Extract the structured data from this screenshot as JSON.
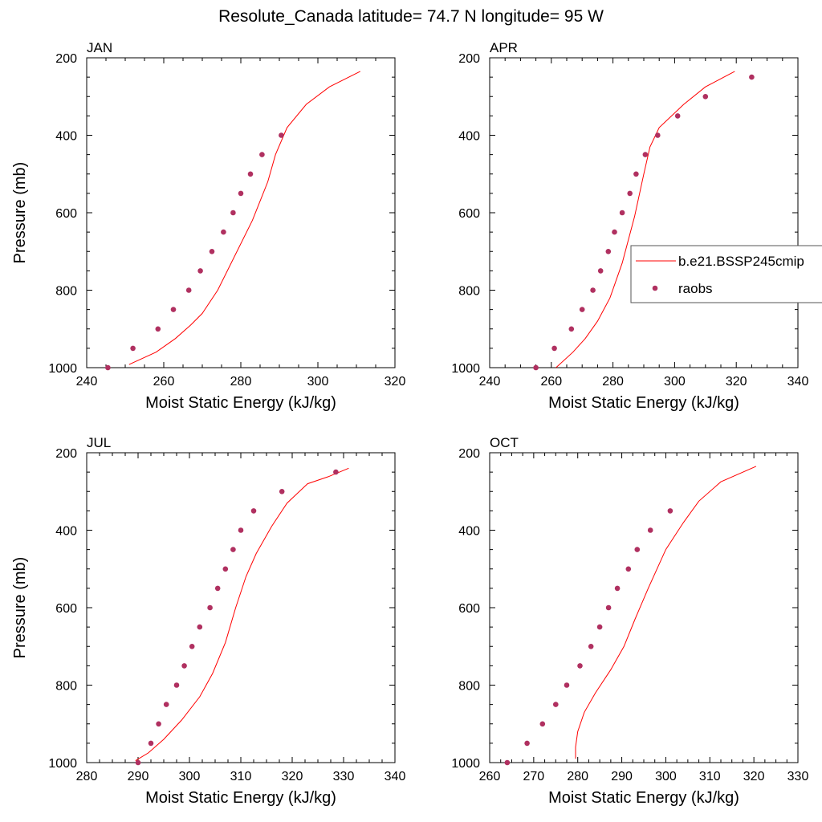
{
  "title": "Resolute_Canada  latitude= 74.7 N longitude= 95 W",
  "colors": {
    "model": "#ff0000",
    "obs": "#b03060"
  },
  "legend": {
    "model_label": "b.e21.BSSP245cmip",
    "obs_label": "raobs",
    "placement": "right side of APR panel (clipped at right edge)"
  },
  "chart_data": [
    {
      "type": "line+scatter",
      "panel": "JAN",
      "title": "JAN",
      "xlabel": "Moist Static Energy (kJ/kg)",
      "ylabel": "Pressure (mb)",
      "xlim": [
        240,
        320
      ],
      "ylim": [
        1000,
        200
      ],
      "xticks": [
        240,
        260,
        280,
        300,
        320
      ],
      "yticks": [
        200,
        400,
        600,
        800,
        1000
      ],
      "series": [
        {
          "name": "b.e21.BSSP245cmip",
          "kind": "line",
          "x": [
            251,
            258,
            263,
            267,
            270,
            274,
            278,
            283,
            287,
            289,
            292,
            297,
            303,
            311
          ],
          "y": [
            992,
            960,
            925,
            890,
            860,
            800,
            720,
            620,
            520,
            450,
            380,
            320,
            275,
            235
          ]
        },
        {
          "name": "raobs",
          "kind": "scatter",
          "x": [
            245.5,
            252,
            258.5,
            262.5,
            266.5,
            269.5,
            272.5,
            275.5,
            278,
            280,
            282.5,
            285.5,
            290.5
          ],
          "y": [
            1000,
            950,
            900,
            850,
            800,
            750,
            700,
            650,
            600,
            550,
            500,
            450,
            400
          ]
        }
      ]
    },
    {
      "type": "line+scatter",
      "panel": "APR",
      "title": "APR",
      "xlabel": "Moist Static Energy (kJ/kg)",
      "ylabel": "",
      "xlim": [
        240,
        340
      ],
      "ylim": [
        1000,
        200
      ],
      "xticks": [
        240,
        260,
        280,
        300,
        320,
        340
      ],
      "yticks": [
        200,
        400,
        600,
        800,
        1000
      ],
      "series": [
        {
          "name": "b.e21.BSSP245cmip",
          "kind": "line",
          "x": [
            261.5,
            267,
            271,
            275,
            279,
            283,
            287,
            290,
            292,
            295,
            299,
            303,
            310,
            319.5
          ],
          "y": [
            1000,
            960,
            925,
            880,
            820,
            730,
            610,
            500,
            430,
            380,
            350,
            320,
            275,
            235
          ]
        },
        {
          "name": "raobs",
          "kind": "scatter",
          "x": [
            255,
            261,
            266.5,
            270,
            273.5,
            276,
            278.5,
            280.5,
            283,
            285.5,
            287.5,
            290.5,
            294.5,
            301,
            310,
            325
          ],
          "y": [
            1000,
            950,
            900,
            850,
            800,
            750,
            700,
            650,
            600,
            550,
            500,
            450,
            400,
            350,
            300,
            250
          ]
        }
      ]
    },
    {
      "type": "line+scatter",
      "panel": "JUL",
      "title": "JUL",
      "xlabel": "Moist Static Energy (kJ/kg)",
      "ylabel": "Pressure (mb)",
      "xlim": [
        280,
        340
      ],
      "ylim": [
        1000,
        200
      ],
      "xticks": [
        280,
        290,
        300,
        310,
        320,
        330,
        340
      ],
      "yticks": [
        200,
        400,
        600,
        800,
        1000
      ],
      "series": [
        {
          "name": "b.e21.BSSP245cmip",
          "kind": "line",
          "x": [
            289.5,
            292,
            295,
            298.5,
            302,
            304.5,
            307,
            309,
            311,
            313,
            316,
            319,
            323,
            327,
            331
          ],
          "y": [
            995,
            975,
            940,
            890,
            830,
            770,
            690,
            600,
            520,
            460,
            390,
            330,
            280,
            262,
            240
          ]
        },
        {
          "name": "raobs",
          "kind": "scatter",
          "x": [
            290,
            292.5,
            294,
            295.5,
            297.5,
            299,
            300.5,
            302,
            304,
            305.5,
            307,
            308.5,
            310,
            312.5,
            318,
            328.5
          ],
          "y": [
            1000,
            950,
            900,
            850,
            800,
            750,
            700,
            650,
            600,
            550,
            500,
            450,
            400,
            350,
            300,
            250
          ]
        }
      ]
    },
    {
      "type": "line+scatter",
      "panel": "OCT",
      "title": "OCT",
      "xlabel": "Moist Static Energy (kJ/kg)",
      "ylabel": "",
      "xlim": [
        260,
        330
      ],
      "ylim": [
        1000,
        200
      ],
      "xticks": [
        260,
        270,
        280,
        290,
        300,
        310,
        320,
        330
      ],
      "yticks": [
        200,
        400,
        600,
        800,
        1000
      ],
      "series": [
        {
          "name": "b.e21.BSSP245cmip",
          "kind": "line",
          "x": [
            279.5,
            279.5,
            280,
            281.5,
            284,
            287.5,
            290.5,
            293,
            296,
            300,
            304,
            307.5,
            312.5,
            320.5
          ],
          "y": [
            990,
            960,
            920,
            870,
            820,
            760,
            700,
            630,
            550,
            450,
            380,
            325,
            275,
            235
          ]
        },
        {
          "name": "raobs",
          "kind": "scatter",
          "x": [
            264,
            268.5,
            272,
            275,
            277.5,
            280.5,
            283,
            285,
            287,
            289,
            291.5,
            293.5,
            296.5,
            301
          ],
          "y": [
            1000,
            950,
            900,
            850,
            800,
            750,
            700,
            650,
            600,
            550,
            500,
            450,
            400,
            350
          ]
        }
      ]
    }
  ]
}
